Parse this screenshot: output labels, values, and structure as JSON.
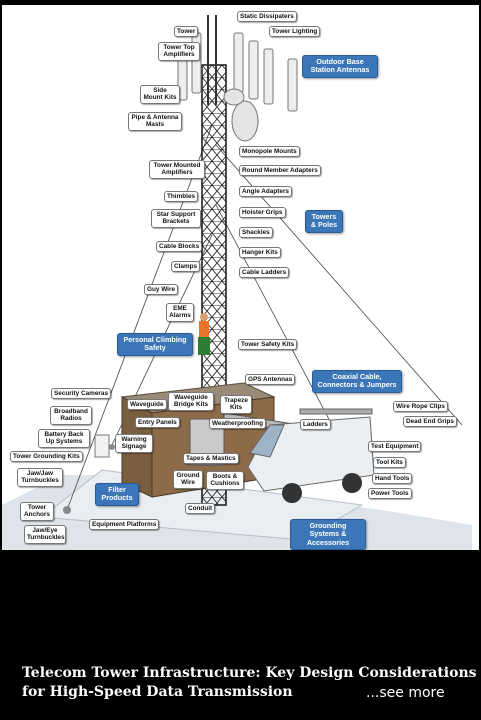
{
  "post": {
    "title_line1": "Telecom Tower Infrastructure: Key Design Considerations",
    "title_line2": "for High-Speed Data Transmission",
    "see_more": "...see more"
  },
  "diagram": {
    "labels": {
      "static_dissipaters": "Static Dissipaters",
      "tower": "Tower",
      "tower_lighting": "Tower Lighting",
      "tower_top_amplifiers": "Tower Top Amplifiers",
      "side_mount_kits": "Side Mount Kits",
      "pipe_antenna_masts": "Pipe & Antenna Masts",
      "monopole_mounts": "Monopole Mounts",
      "round_member_adapters": "Round Member Adapters",
      "tower_mounted_amplifiers": "Tower Mounted Amplifiers",
      "angle_adapters": "Angle Adapters",
      "thimbles": "Thimbles",
      "hoister_grips": "Hoister Grips",
      "star_support_brackets": "Star Support Brackets",
      "shackles": "Shackles",
      "cable_blocks": "Cable Blocks",
      "hanger_kits": "Hanger Kits",
      "clamps": "Clamps",
      "cable_ladders": "Cable Ladders",
      "guy_wire": "Guy Wire",
      "eme_alarms": "EME Alarms",
      "tower_safety_kits": "Tower Safety Kits",
      "gps_antennas": "GPS Antennas",
      "security_cameras": "Security Cameras",
      "waveguide": "Waveguide",
      "waveguide_bridge_kits": "Waveguide Bridge Kits",
      "trapeze_kits": "Trapeze Kits",
      "broadband_radios": "Broadband Radios",
      "entry_panels": "Entry Panels",
      "weatherproofing": "Weatherproofing",
      "ladders": "Ladders",
      "wire_rope_clips": "Wire Rope Clips",
      "dead_end_grips": "Dead End Grips",
      "battery_back_up_systems": "Battery Back Up Systems",
      "warning_signage": "Warning Signage",
      "test_equipment": "Test Equipment",
      "tower_grounding_kits": "Tower Grounding Kits",
      "tapes_mastics": "Tapes & Mastics",
      "tool_kits": "Tool Kits",
      "jaw_jaw_turnbuckles": "Jaw/Jaw Turnbuckles",
      "ground_wire": "Ground Wire",
      "boots_cushions": "Boots & Cushions",
      "hand_tools": "Hand Tools",
      "power_tools": "Power Tools",
      "tower_anchors": "Tower Anchors",
      "conduit": "Conduit",
      "jaw_eye_turnbuckles": "Jaw/Eye Turnbuckles",
      "equipment_platforms": "Equipment Platforms"
    },
    "categories": {
      "outdoor_base_station_antennas": "Outdoor Base Station Antennas",
      "towers_poles": "Towers & Poles",
      "personal_climbing_safety": "Personal Climbing Safety",
      "coaxial_cable": "Coaxial Cable, Connectors & Jumpers",
      "filter_products": "Filter Products",
      "grounding_systems": "Grounding Systems & Accessories"
    },
    "colors": {
      "category_blue": "#3b76b9",
      "background": "#000000",
      "caption_text": "#ffffff"
    }
  }
}
